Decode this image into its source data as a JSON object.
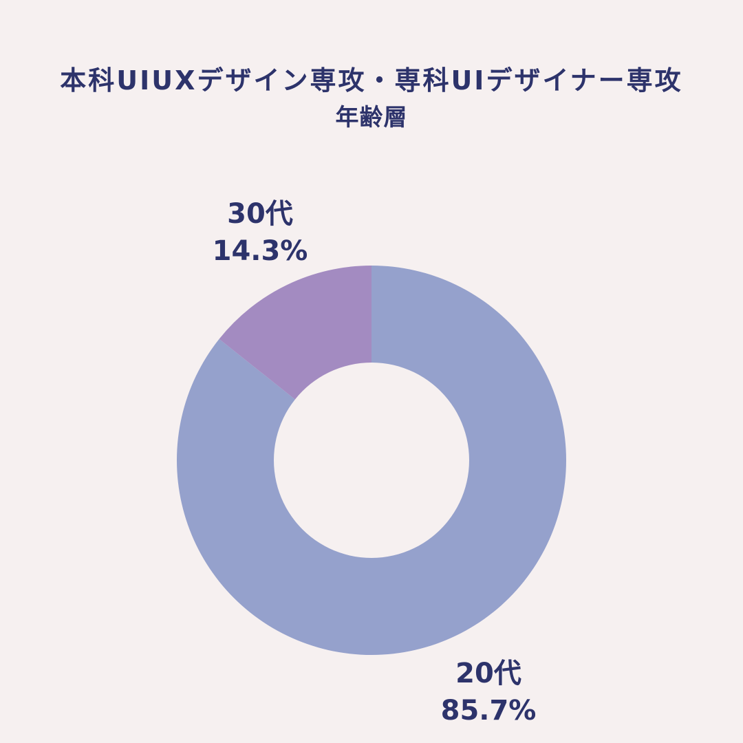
{
  "chart_data": {
    "type": "pie",
    "title": "本科UIUXデザイン専攻・専科UIデザイナー専攻",
    "subtitle": "年齢層",
    "categories": [
      "20代",
      "30代"
    ],
    "values": [
      85.7,
      14.3
    ],
    "value_labels": [
      "85.7%",
      "14.3%"
    ],
    "colors": [
      "#95a1cc",
      "#a38bc1"
    ],
    "donut": true,
    "legend": "none"
  },
  "colors": {
    "background": "#f6f0f0",
    "text": "#2d336b"
  }
}
